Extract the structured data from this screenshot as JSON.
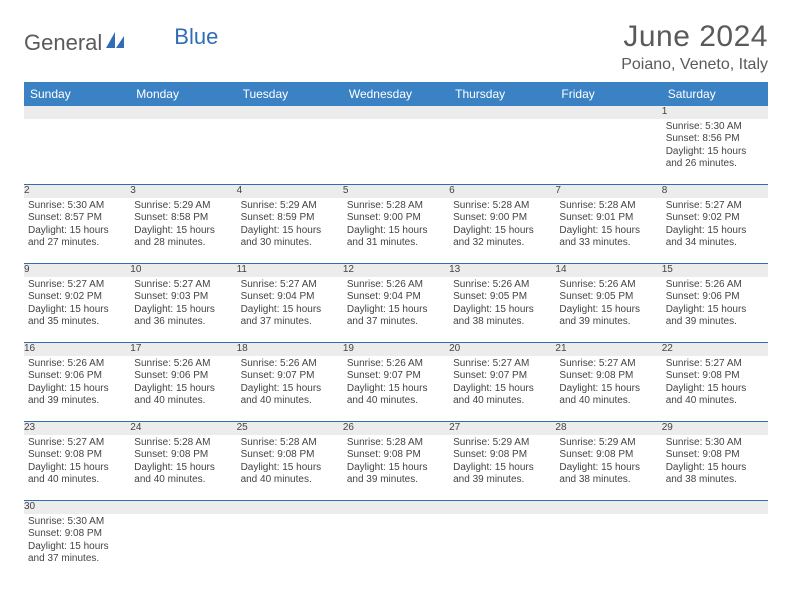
{
  "logo": {
    "text1": "General",
    "text2": "Blue"
  },
  "header": {
    "month": "June 2024",
    "location": "Poiano, Veneto, Italy"
  },
  "colors": {
    "header_bg": "#3b82c4",
    "header_text": "#ffffff",
    "daynum_bg": "#ececec",
    "cell_border": "#2f6eb5",
    "text": "#444444",
    "title_text": "#5a5a5a",
    "logo_gray": "#5a5a5a",
    "logo_blue": "#2f6eb5"
  },
  "weekdays": [
    "Sunday",
    "Monday",
    "Tuesday",
    "Wednesday",
    "Thursday",
    "Friday",
    "Saturday"
  ],
  "first_weekday_index": 6,
  "days": [
    {
      "n": 1,
      "sunrise": "5:30 AM",
      "sunset": "8:56 PM",
      "daylight": "15 hours and 26 minutes."
    },
    {
      "n": 2,
      "sunrise": "5:30 AM",
      "sunset": "8:57 PM",
      "daylight": "15 hours and 27 minutes."
    },
    {
      "n": 3,
      "sunrise": "5:29 AM",
      "sunset": "8:58 PM",
      "daylight": "15 hours and 28 minutes."
    },
    {
      "n": 4,
      "sunrise": "5:29 AM",
      "sunset": "8:59 PM",
      "daylight": "15 hours and 30 minutes."
    },
    {
      "n": 5,
      "sunrise": "5:28 AM",
      "sunset": "9:00 PM",
      "daylight": "15 hours and 31 minutes."
    },
    {
      "n": 6,
      "sunrise": "5:28 AM",
      "sunset": "9:00 PM",
      "daylight": "15 hours and 32 minutes."
    },
    {
      "n": 7,
      "sunrise": "5:28 AM",
      "sunset": "9:01 PM",
      "daylight": "15 hours and 33 minutes."
    },
    {
      "n": 8,
      "sunrise": "5:27 AM",
      "sunset": "9:02 PM",
      "daylight": "15 hours and 34 minutes."
    },
    {
      "n": 9,
      "sunrise": "5:27 AM",
      "sunset": "9:02 PM",
      "daylight": "15 hours and 35 minutes."
    },
    {
      "n": 10,
      "sunrise": "5:27 AM",
      "sunset": "9:03 PM",
      "daylight": "15 hours and 36 minutes."
    },
    {
      "n": 11,
      "sunrise": "5:27 AM",
      "sunset": "9:04 PM",
      "daylight": "15 hours and 37 minutes."
    },
    {
      "n": 12,
      "sunrise": "5:26 AM",
      "sunset": "9:04 PM",
      "daylight": "15 hours and 37 minutes."
    },
    {
      "n": 13,
      "sunrise": "5:26 AM",
      "sunset": "9:05 PM",
      "daylight": "15 hours and 38 minutes."
    },
    {
      "n": 14,
      "sunrise": "5:26 AM",
      "sunset": "9:05 PM",
      "daylight": "15 hours and 39 minutes."
    },
    {
      "n": 15,
      "sunrise": "5:26 AM",
      "sunset": "9:06 PM",
      "daylight": "15 hours and 39 minutes."
    },
    {
      "n": 16,
      "sunrise": "5:26 AM",
      "sunset": "9:06 PM",
      "daylight": "15 hours and 39 minutes."
    },
    {
      "n": 17,
      "sunrise": "5:26 AM",
      "sunset": "9:06 PM",
      "daylight": "15 hours and 40 minutes."
    },
    {
      "n": 18,
      "sunrise": "5:26 AM",
      "sunset": "9:07 PM",
      "daylight": "15 hours and 40 minutes."
    },
    {
      "n": 19,
      "sunrise": "5:26 AM",
      "sunset": "9:07 PM",
      "daylight": "15 hours and 40 minutes."
    },
    {
      "n": 20,
      "sunrise": "5:27 AM",
      "sunset": "9:07 PM",
      "daylight": "15 hours and 40 minutes."
    },
    {
      "n": 21,
      "sunrise": "5:27 AM",
      "sunset": "9:08 PM",
      "daylight": "15 hours and 40 minutes."
    },
    {
      "n": 22,
      "sunrise": "5:27 AM",
      "sunset": "9:08 PM",
      "daylight": "15 hours and 40 minutes."
    },
    {
      "n": 23,
      "sunrise": "5:27 AM",
      "sunset": "9:08 PM",
      "daylight": "15 hours and 40 minutes."
    },
    {
      "n": 24,
      "sunrise": "5:28 AM",
      "sunset": "9:08 PM",
      "daylight": "15 hours and 40 minutes."
    },
    {
      "n": 25,
      "sunrise": "5:28 AM",
      "sunset": "9:08 PM",
      "daylight": "15 hours and 40 minutes."
    },
    {
      "n": 26,
      "sunrise": "5:28 AM",
      "sunset": "9:08 PM",
      "daylight": "15 hours and 39 minutes."
    },
    {
      "n": 27,
      "sunrise": "5:29 AM",
      "sunset": "9:08 PM",
      "daylight": "15 hours and 39 minutes."
    },
    {
      "n": 28,
      "sunrise": "5:29 AM",
      "sunset": "9:08 PM",
      "daylight": "15 hours and 38 minutes."
    },
    {
      "n": 29,
      "sunrise": "5:30 AM",
      "sunset": "9:08 PM",
      "daylight": "15 hours and 38 minutes."
    },
    {
      "n": 30,
      "sunrise": "5:30 AM",
      "sunset": "9:08 PM",
      "daylight": "15 hours and 37 minutes."
    }
  ],
  "labels": {
    "sunrise": "Sunrise:",
    "sunset": "Sunset:",
    "daylight": "Daylight:"
  }
}
